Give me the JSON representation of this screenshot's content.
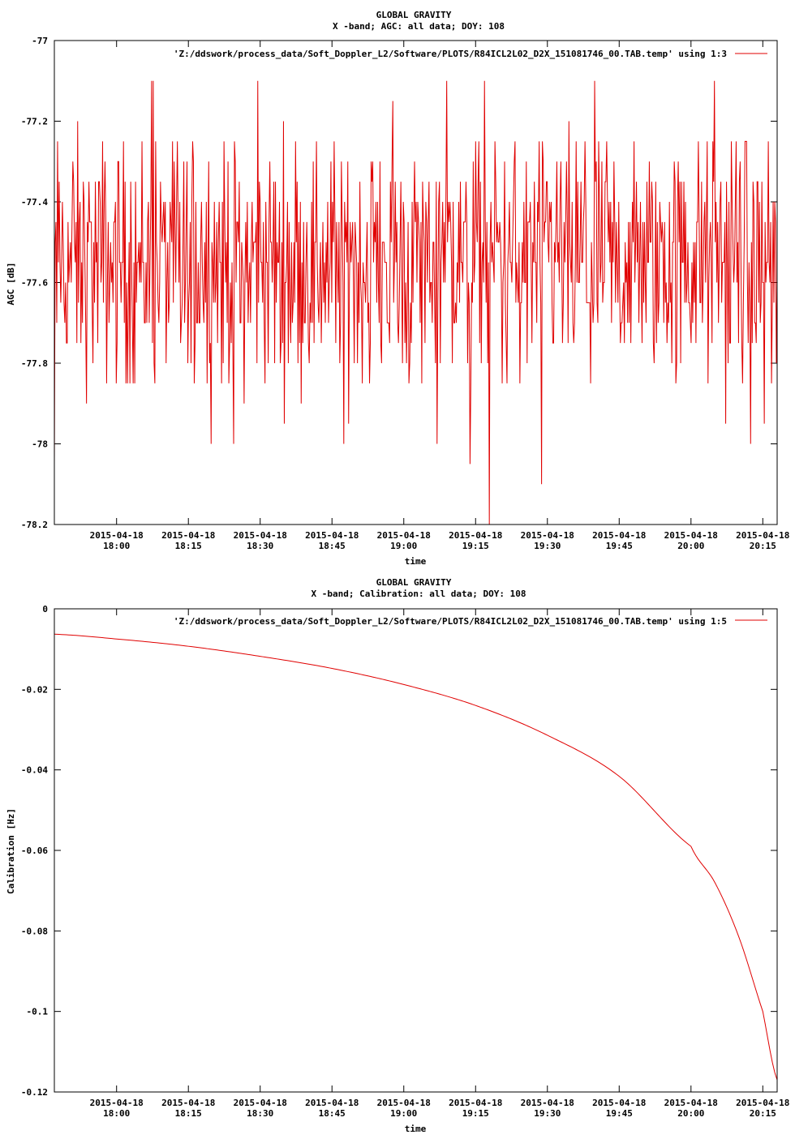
{
  "chart_data": [
    {
      "type": "line",
      "title": "GLOBAL GRAVITY",
      "subtitle": "X -band; AGC: all data; DOY: 108",
      "xlabel": "time",
      "ylabel": "AGC [dB]",
      "ylim": [
        -78.2,
        -77
      ],
      "yticks": [
        -77,
        -77.2,
        -77.4,
        -77.6,
        -77.8,
        -78,
        -78.2
      ],
      "yticklabels": [
        "-77",
        "-77.2",
        "-77.4",
        "-77.6",
        "-77.8",
        "-78",
        "-78.2"
      ],
      "xlim": [
        "2015-04-18 17:47",
        "2015-04-18 20:18"
      ],
      "xticks": [
        "2015-04-18 18:00",
        "2015-04-18 18:15",
        "2015-04-18 18:30",
        "2015-04-18 18:45",
        "2015-04-18 19:00",
        "2015-04-18 19:15",
        "2015-04-18 19:30",
        "2015-04-18 19:45",
        "2015-04-18 20:00",
        "2015-04-18 20:15"
      ],
      "xticklabels_date": [
        "2015-04-18",
        "2015-04-18",
        "2015-04-18",
        "2015-04-18",
        "2015-04-18",
        "2015-04-18",
        "2015-04-18",
        "2015-04-18",
        "2015-04-18",
        "2015-04-18"
      ],
      "xticklabels_time": [
        "18:00",
        "18:15",
        "18:30",
        "18:45",
        "19:00",
        "19:15",
        "19:30",
        "19:45",
        "20:00",
        "20:15"
      ],
      "legend": "top-right",
      "series": [
        {
          "name": "'Z:/ddswork/process_data/Soft_Doppler_L2/Software/PLOTS/R84ICL2L02_D2X_151081746_00.TAB.temp' using 1:3",
          "color": "#e00000",
          "x": [
            "2015-04-18 17:47",
            "2015-04-18 20:18"
          ],
          "values_summary": "noisy, quantized at 0.05 dB steps, mostly between -77.2 and -77.9 dB; min -78.2, max -77.1",
          "min": -78.2,
          "max": -77.1,
          "mean": -77.55,
          "step": 0.05
        }
      ]
    },
    {
      "type": "line",
      "title": "GLOBAL GRAVITY",
      "subtitle": "X -band; Calibration: all data; DOY: 108",
      "xlabel": "time",
      "ylabel": "Calibration [Hz]",
      "ylim": [
        -0.12,
        0
      ],
      "yticks": [
        0,
        -0.02,
        -0.04,
        -0.06,
        -0.08,
        -0.1,
        -0.12
      ],
      "yticklabels": [
        "0",
        "-0.02",
        "-0.04",
        "-0.06",
        "-0.08",
        "-0.1",
        "-0.12"
      ],
      "xlim": [
        "2015-04-18 17:47",
        "2015-04-18 20:18"
      ],
      "xticks": [
        "2015-04-18 18:00",
        "2015-04-18 18:15",
        "2015-04-18 18:30",
        "2015-04-18 18:45",
        "2015-04-18 19:00",
        "2015-04-18 19:15",
        "2015-04-18 19:30",
        "2015-04-18 19:45",
        "2015-04-18 20:00",
        "2015-04-18 20:15"
      ],
      "xticklabels_date": [
        "2015-04-18",
        "2015-04-18",
        "2015-04-18",
        "2015-04-18",
        "2015-04-18",
        "2015-04-18",
        "2015-04-18",
        "2015-04-18",
        "2015-04-18",
        "2015-04-18"
      ],
      "xticklabels_time": [
        "18:00",
        "18:15",
        "18:30",
        "18:45",
        "19:00",
        "19:15",
        "19:30",
        "19:45",
        "20:00",
        "20:15"
      ],
      "legend": "top-right",
      "series": [
        {
          "name": "'Z:/ddswork/process_data/Soft_Doppler_L2/Software/PLOTS/R84ICL2L02_D2X_151081746_00.TAB.temp' using 1:5",
          "color": "#e00000",
          "x": [
            "2015-04-18 17:47",
            "2015-04-18 18:00",
            "2015-04-18 18:15",
            "2015-04-18 18:30",
            "2015-04-18 18:45",
            "2015-04-18 19:00",
            "2015-04-18 19:15",
            "2015-04-18 19:30",
            "2015-04-18 19:45",
            "2015-04-18 20:00",
            "2015-04-18 20:05",
            "2015-04-18 20:10",
            "2015-04-18 20:15",
            "2015-04-18 20:18"
          ],
          "values": [
            -0.0063,
            -0.0075,
            -0.0093,
            -0.0118,
            -0.0148,
            -0.0188,
            -0.024,
            -0.0314,
            -0.0416,
            -0.059,
            -0.068,
            -0.0815,
            -0.1,
            -0.117
          ]
        }
      ]
    }
  ]
}
